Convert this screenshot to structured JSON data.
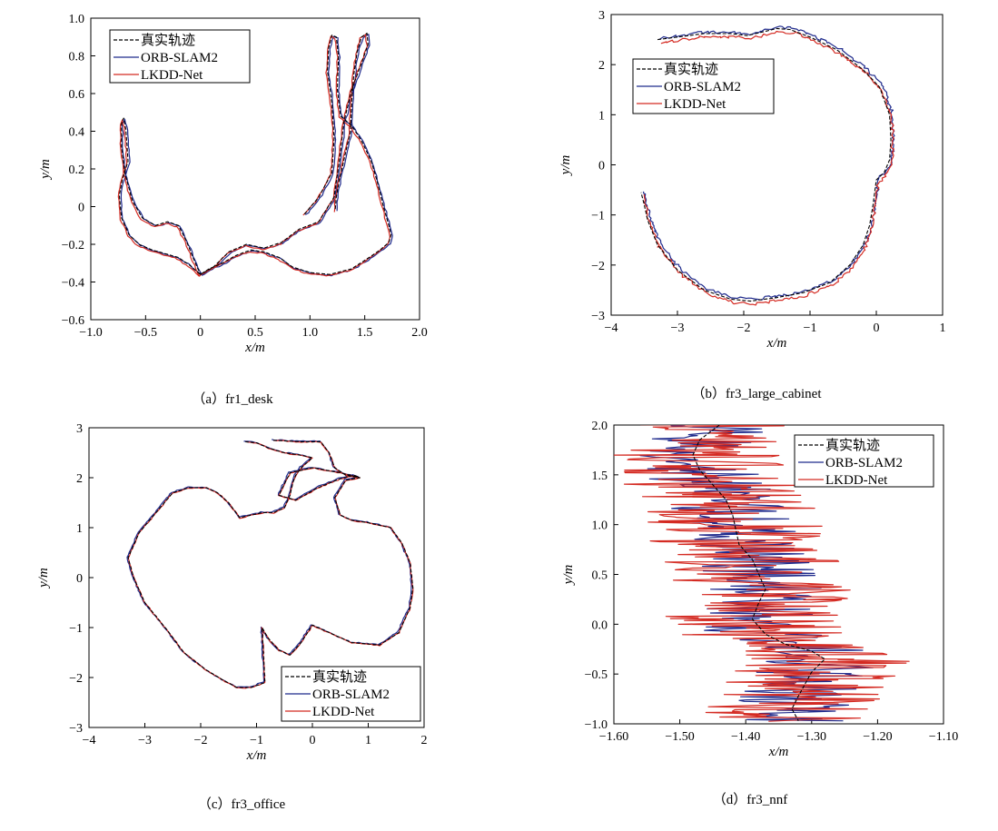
{
  "legend_labels": [
    "真实轨迹",
    "ORB-SLAM2",
    "LKDD-Net"
  ],
  "colors": {
    "truth": "#000000",
    "orb": "#1f2a8c",
    "lkdd": "#d42a22"
  },
  "chart_data": [
    {
      "id": "a",
      "type": "line",
      "caption": "（a）fr1_desk",
      "xlabel": "x/m",
      "ylabel": "y/m",
      "xlim": [
        -1.0,
        2.0
      ],
      "ylim": [
        -0.6,
        1.0
      ],
      "xticks": [
        -1.0,
        -0.5,
        0,
        0.5,
        1.0,
        1.5,
        2.0
      ],
      "xtick_labels": [
        "−1.0",
        "−0.5",
        "0",
        "0.5",
        "1.0",
        "1.5",
        "2.0"
      ],
      "yticks": [
        -0.6,
        -0.4,
        -0.2,
        0,
        0.2,
        0.4,
        0.6,
        0.8,
        1.0
      ],
      "ytick_labels": [
        "−0.6",
        "−0.4",
        "−0.2",
        "0",
        "0.2",
        "0.4",
        "0.6",
        "0.8",
        "1.0"
      ],
      "legend_loc": "top-left",
      "series": [
        {
          "name": "真实轨迹",
          "style": "dashed",
          "color": "#000000",
          "noise": 0.003,
          "x": [
            0.95,
            1.08,
            1.2,
            1.22,
            1.2,
            1.16,
            1.17,
            1.2,
            1.24,
            1.26,
            1.25,
            1.28,
            1.38,
            1.47,
            1.56,
            1.62,
            1.67,
            1.72,
            1.74,
            1.72,
            1.64,
            1.54,
            1.38,
            1.18,
            1.0,
            0.84,
            0.72,
            0.58,
            0.46,
            0.32,
            0.2,
            0.08,
            0.0,
            -0.1,
            -0.2,
            -0.32,
            -0.44,
            -0.56,
            -0.65,
            -0.72,
            -0.74,
            -0.71,
            -0.66,
            -0.67,
            -0.68,
            -0.7,
            -0.72,
            -0.72,
            -0.69,
            -0.62,
            -0.53,
            -0.41,
            -0.3,
            -0.2,
            -0.13,
            -0.06,
            0.0,
            0.12,
            0.26,
            0.42,
            0.58,
            0.74,
            0.9,
            1.08,
            1.22,
            1.27,
            1.31,
            1.38,
            1.47,
            1.53,
            1.52,
            1.47,
            1.43,
            1.4,
            1.38,
            1.37,
            1.33,
            1.3,
            1.27,
            1.24,
            1.23
          ],
          "y": [
            -0.04,
            0.05,
            0.18,
            0.36,
            0.55,
            0.72,
            0.84,
            0.91,
            0.9,
            0.8,
            0.62,
            0.48,
            0.43,
            0.35,
            0.24,
            0.12,
            0.0,
            -0.1,
            -0.15,
            -0.19,
            -0.23,
            -0.27,
            -0.33,
            -0.36,
            -0.35,
            -0.32,
            -0.27,
            -0.24,
            -0.23,
            -0.26,
            -0.3,
            -0.33,
            -0.36,
            -0.31,
            -0.27,
            -0.25,
            -0.23,
            -0.2,
            -0.15,
            -0.06,
            0.06,
            0.15,
            0.24,
            0.33,
            0.41,
            0.47,
            0.44,
            0.32,
            0.18,
            0.03,
            -0.06,
            -0.1,
            -0.08,
            -0.1,
            -0.18,
            -0.28,
            -0.36,
            -0.32,
            -0.24,
            -0.2,
            -0.22,
            -0.19,
            -0.12,
            -0.08,
            0.05,
            0.25,
            0.45,
            0.62,
            0.76,
            0.86,
            0.92,
            0.9,
            0.82,
            0.7,
            0.55,
            0.4,
            0.3,
            0.22,
            0.15,
            0.05,
            -0.02
          ]
        },
        {
          "name": "ORB-SLAM2",
          "style": "solid",
          "color": "#1f2a8c",
          "noise": 0.012,
          "dx": 0.012,
          "dy": -0.005
        },
        {
          "name": "LKDD-Net",
          "style": "solid",
          "color": "#d42a22",
          "noise": 0.012,
          "dx": -0.01,
          "dy": -0.008
        }
      ]
    },
    {
      "id": "b",
      "type": "line",
      "caption": "（b）fr3_large_cabinet",
      "xlabel": "x/m",
      "ylabel": "y/m",
      "xlim": [
        -4,
        1
      ],
      "ylim": [
        -3,
        3
      ],
      "xticks": [
        -4,
        -3,
        -2,
        -1,
        0,
        1
      ],
      "xtick_labels": [
        "−4",
        "−3",
        "−2",
        "−1",
        "0",
        "1"
      ],
      "yticks": [
        -3,
        -2,
        -1,
        0,
        1,
        2,
        3
      ],
      "ytick_labels": [
        "−3",
        "−2",
        "−1",
        "0",
        "1",
        "2",
        "3"
      ],
      "legend_loc": "top-left",
      "series": [
        {
          "name": "真实轨迹",
          "style": "dashed",
          "color": "#000000",
          "noise": 0.008,
          "x": [
            -3.3,
            -3.0,
            -2.6,
            -2.2,
            -1.95,
            -1.5,
            -1.3,
            -1.0,
            -0.6,
            -0.2,
            0.05,
            0.2,
            0.22,
            0.2,
            0.12,
            0.0,
            -0.05,
            -0.1,
            -0.2,
            -0.4,
            -0.7,
            -1.1,
            -1.5,
            -1.9,
            -2.2,
            -2.6,
            -3.0,
            -3.3,
            -3.45,
            -3.5,
            -3.55
          ],
          "y": [
            2.5,
            2.55,
            2.62,
            2.62,
            2.58,
            2.72,
            2.7,
            2.55,
            2.3,
            1.9,
            1.55,
            1.0,
            0.5,
            0.1,
            -0.15,
            -0.3,
            -0.8,
            -1.2,
            -1.6,
            -2.0,
            -2.35,
            -2.55,
            -2.65,
            -2.72,
            -2.68,
            -2.5,
            -2.1,
            -1.6,
            -1.1,
            -0.8,
            -0.55
          ]
        },
        {
          "name": "ORB-SLAM2",
          "style": "solid",
          "color": "#1f2a8c",
          "noise": 0.03,
          "dx": 0.04,
          "dy": 0.03
        },
        {
          "name": "LKDD-Net",
          "style": "solid",
          "color": "#d42a22",
          "noise": 0.03,
          "dx": 0.03,
          "dy": -0.06
        }
      ]
    },
    {
      "id": "c",
      "type": "line",
      "caption": "（c）fr3_office",
      "xlabel": "x/m",
      "ylabel": "y/m",
      "xlim": [
        -4,
        2
      ],
      "ylim": [
        -3,
        3
      ],
      "xticks": [
        -4,
        -3,
        -2,
        -1,
        0,
        1,
        2
      ],
      "xtick_labels": [
        "−4",
        "−3",
        "−2",
        "−1",
        "0",
        "1",
        "2"
      ],
      "yticks": [
        -3,
        -2,
        -1,
        0,
        1,
        2,
        3
      ],
      "ytick_labels": [
        "−3",
        "−2",
        "−1",
        "0",
        "1",
        "2",
        "3"
      ],
      "legend_loc": "bottom-right",
      "series": [
        {
          "name": "真实轨迹",
          "style": "dashed",
          "color": "#000000",
          "noise": 0.004,
          "x": [
            -0.7,
            -0.2,
            0.15,
            0.3,
            0.4,
            0.6,
            0.85,
            0.5,
            0.0,
            -0.4,
            -0.6,
            -0.3,
            0.1,
            0.5,
            0.75,
            0.85,
            0.6,
            0.4,
            0.5,
            0.7,
            1.0,
            1.4,
            1.6,
            1.75,
            1.8,
            1.75,
            1.55,
            1.2,
            0.7,
            0.3,
            0.0,
            -0.2,
            -0.4,
            -0.6,
            -0.8,
            -0.9,
            -0.85,
            -1.1,
            -1.35,
            -1.6,
            -1.9,
            -2.3,
            -2.6,
            -3.0,
            -3.2,
            -3.3,
            -3.1,
            -2.8,
            -2.5,
            -2.2,
            -1.9,
            -1.7,
            -1.5,
            -1.3,
            -1.1,
            -0.9,
            -0.7,
            -0.5,
            -0.4,
            -0.35,
            -0.3,
            -0.2,
            -0.1,
            0.0,
            -0.2,
            -0.5,
            -0.8,
            -1.0,
            -1.2
          ],
          "y": [
            2.75,
            2.72,
            2.72,
            2.5,
            2.2,
            2.05,
            2.0,
            2.1,
            2.2,
            2.1,
            1.65,
            1.55,
            1.8,
            1.98,
            2.05,
            2.0,
            1.95,
            1.6,
            1.25,
            1.15,
            1.1,
            1.0,
            0.7,
            0.3,
            -0.2,
            -0.6,
            -1.1,
            -1.35,
            -1.3,
            -1.1,
            -0.95,
            -1.3,
            -1.55,
            -1.45,
            -1.2,
            -1.0,
            -2.1,
            -2.2,
            -2.2,
            -2.05,
            -1.85,
            -1.5,
            -1.05,
            -0.5,
            0.0,
            0.4,
            0.9,
            1.3,
            1.7,
            1.8,
            1.8,
            1.7,
            1.5,
            1.2,
            1.25,
            1.3,
            1.3,
            1.4,
            1.65,
            1.9,
            2.05,
            2.2,
            2.3,
            2.4,
            2.45,
            2.5,
            2.6,
            2.7,
            2.72
          ]
        },
        {
          "name": "ORB-SLAM2",
          "style": "solid",
          "color": "#1f2a8c",
          "noise": 0.01,
          "dx": -0.02,
          "dy": 0.01
        },
        {
          "name": "LKDD-Net",
          "style": "solid",
          "color": "#d42a22",
          "noise": 0.01,
          "dx": 0.0,
          "dy": -0.005
        }
      ]
    },
    {
      "id": "d",
      "type": "line",
      "caption": "（d）fr3_nnf",
      "xlabel": "x/m",
      "ylabel": "y/m",
      "xlim": [
        -1.6,
        -1.1
      ],
      "ylim": [
        -1.0,
        2.0
      ],
      "xticks": [
        -1.6,
        -1.5,
        -1.4,
        -1.3,
        -1.2,
        -1.1
      ],
      "xtick_labels": [
        "−1.60",
        "−1.50",
        "−1.40",
        "−1.30",
        "−1.20",
        "−1.10"
      ],
      "yticks": [
        -1.0,
        -0.5,
        0.0,
        0.5,
        1.0,
        1.5,
        2.0
      ],
      "ytick_labels": [
        "−1.0",
        "−0.5",
        "0.0",
        "0.5",
        "1.0",
        "1.5",
        "2.0"
      ],
      "legend_loc": "top-right",
      "series": [
        {
          "name": "真实轨迹",
          "style": "dashed",
          "color": "#000000",
          "noise": 0.002,
          "x": [
            -1.44,
            -1.47,
            -1.48,
            -1.47,
            -1.45,
            -1.43,
            -1.42,
            -1.415,
            -1.41,
            -1.39,
            -1.38,
            -1.37,
            -1.38,
            -1.39,
            -1.37,
            -1.34,
            -1.3,
            -1.28,
            -1.3,
            -1.31,
            -1.32,
            -1.33,
            -1.32
          ],
          "y": [
            2.0,
            1.85,
            1.7,
            1.55,
            1.4,
            1.25,
            1.1,
            0.95,
            0.8,
            0.65,
            0.5,
            0.35,
            0.22,
            0.05,
            -0.1,
            -0.2,
            -0.27,
            -0.35,
            -0.48,
            -0.6,
            -0.72,
            -0.85,
            -0.97
          ]
        },
        {
          "name": "ORB-SLAM2",
          "style": "solid",
          "color": "#1f2a8c",
          "noise": 0.03,
          "dx": 0.0,
          "dy": 0.0,
          "step": 0.012
        },
        {
          "name": "LKDD-Net",
          "style": "solid",
          "color": "#d42a22",
          "noise": 0.045,
          "dx": 0.0,
          "dy": 0.0,
          "step": 0.01
        }
      ]
    }
  ]
}
